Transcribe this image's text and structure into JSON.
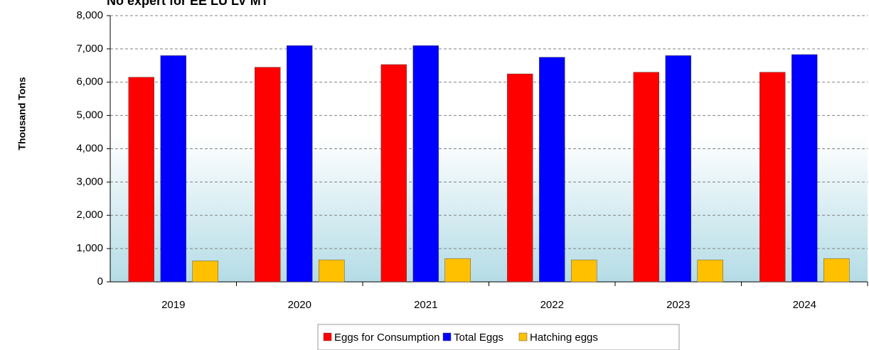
{
  "chart_data": {
    "type": "bar",
    "title": "No expert for EE LU LV MT",
    "y_label": "Thousand Tons",
    "categories": [
      "2019",
      "2020",
      "2021",
      "2022",
      "2023",
      "2024"
    ],
    "series": [
      {
        "name": "Eggs for Consumption",
        "color": "#ff0000",
        "values": [
          6150,
          6450,
          6530,
          6250,
          6300,
          6300
        ]
      },
      {
        "name": "Total Eggs",
        "color": "#0000ff",
        "values": [
          6800,
          7100,
          7100,
          6750,
          6800,
          6830
        ]
      },
      {
        "name": "Hatching eggs",
        "color": "#ffc000",
        "values": [
          630,
          660,
          700,
          660,
          660,
          700
        ]
      }
    ],
    "ylim": [
      0,
      8000
    ],
    "yticks": [
      0,
      {
        "value": 1000,
        "label": "1,000"
      },
      {
        "value": 2000,
        "label": "2,000"
      },
      {
        "value": 3000,
        "label": "3,000"
      },
      {
        "value": 4000,
        "label": "4,000"
      },
      {
        "value": 5000,
        "label": "5,000"
      },
      {
        "value": 6000,
        "label": "6,000"
      },
      {
        "value": 7000,
        "label": "7,000"
      },
      {
        "value": 8000,
        "label": "8,000"
      }
    ],
    "grid": true,
    "legend": "bottom"
  }
}
